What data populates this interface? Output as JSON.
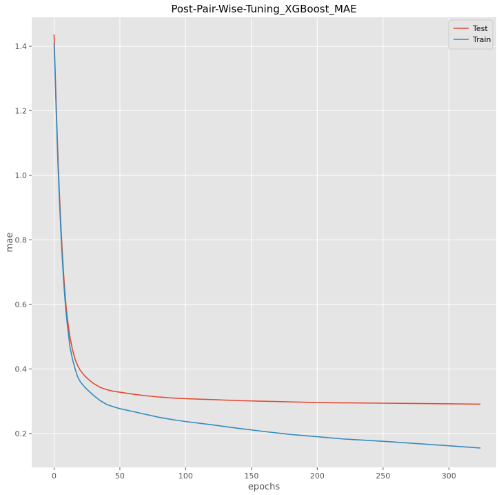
{
  "chart_data": {
    "type": "line",
    "title": "Post-Pair-Wise-Tuning_XGBoost_MAE",
    "xlabel": "epochs",
    "ylabel": "mae",
    "xlim": [
      -17,
      336
    ],
    "ylim": [
      0.095,
      1.49
    ],
    "xticks": [
      0,
      50,
      100,
      150,
      200,
      250,
      300
    ],
    "yticks": [
      0.2,
      0.4,
      0.6,
      0.8,
      1.0,
      1.2,
      1.4
    ],
    "ytick_labels": [
      "0.2",
      "0.4",
      "0.6",
      "0.8",
      "1.0",
      "1.2",
      "1.4"
    ],
    "grid": true,
    "legend": "top-right",
    "background_color": "#e5e5e5",
    "grid_color": "#ffffff",
    "series": [
      {
        "name": "Test",
        "color": "#e24a33",
        "points": [
          [
            0,
            1.437
          ],
          [
            1,
            1.3
          ],
          [
            2,
            1.17
          ],
          [
            3,
            1.05
          ],
          [
            4,
            0.95
          ],
          [
            5,
            0.86
          ],
          [
            6,
            0.78
          ],
          [
            7,
            0.71
          ],
          [
            8,
            0.65
          ],
          [
            9,
            0.6
          ],
          [
            10,
            0.56
          ],
          [
            12,
            0.5
          ],
          [
            14,
            0.46
          ],
          [
            16,
            0.43
          ],
          [
            18,
            0.41
          ],
          [
            20,
            0.395
          ],
          [
            23,
            0.38
          ],
          [
            26,
            0.368
          ],
          [
            30,
            0.355
          ],
          [
            35,
            0.343
          ],
          [
            40,
            0.336
          ],
          [
            45,
            0.331
          ],
          [
            50,
            0.328
          ],
          [
            60,
            0.322
          ],
          [
            70,
            0.317
          ],
          [
            80,
            0.313
          ],
          [
            90,
            0.31
          ],
          [
            100,
            0.308
          ],
          [
            120,
            0.305
          ],
          [
            140,
            0.302
          ],
          [
            160,
            0.3
          ],
          [
            180,
            0.298
          ],
          [
            200,
            0.296
          ],
          [
            220,
            0.295
          ],
          [
            250,
            0.294
          ],
          [
            275,
            0.293
          ],
          [
            300,
            0.292
          ],
          [
            324,
            0.291
          ]
        ]
      },
      {
        "name": "Train",
        "color": "#348abd",
        "points": [
          [
            0,
            1.41
          ],
          [
            1,
            1.28
          ],
          [
            2,
            1.15
          ],
          [
            3,
            1.03
          ],
          [
            4,
            0.93
          ],
          [
            5,
            0.84
          ],
          [
            6,
            0.76
          ],
          [
            7,
            0.69
          ],
          [
            8,
            0.63
          ],
          [
            9,
            0.58
          ],
          [
            10,
            0.54
          ],
          [
            12,
            0.47
          ],
          [
            14,
            0.43
          ],
          [
            16,
            0.4
          ],
          [
            18,
            0.375
          ],
          [
            20,
            0.36
          ],
          [
            23,
            0.345
          ],
          [
            26,
            0.333
          ],
          [
            30,
            0.318
          ],
          [
            35,
            0.302
          ],
          [
            40,
            0.29
          ],
          [
            45,
            0.283
          ],
          [
            50,
            0.277
          ],
          [
            60,
            0.268
          ],
          [
            70,
            0.259
          ],
          [
            80,
            0.25
          ],
          [
            90,
            0.243
          ],
          [
            100,
            0.237
          ],
          [
            120,
            0.227
          ],
          [
            140,
            0.216
          ],
          [
            160,
            0.206
          ],
          [
            180,
            0.197
          ],
          [
            200,
            0.19
          ],
          [
            220,
            0.183
          ],
          [
            250,
            0.176
          ],
          [
            275,
            0.169
          ],
          [
            300,
            0.162
          ],
          [
            324,
            0.155
          ]
        ]
      }
    ]
  }
}
